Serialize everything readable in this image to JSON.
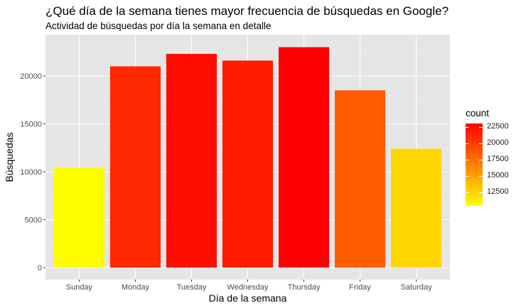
{
  "chart_data": {
    "type": "bar",
    "title": "¿Qué día de la semana tienes mayor frecuencia de búsquedas en Google?",
    "subtitle": "Actividad de búsquedas por día la semana en detalle",
    "xlabel": "Día de la semana",
    "ylabel": "Búsquedas",
    "categories": [
      "Sunday",
      "Monday",
      "Tuesday",
      "Wednesday",
      "Thursday",
      "Friday",
      "Saturday"
    ],
    "values": [
      10400,
      21000,
      22300,
      21600,
      23000,
      18500,
      12400
    ],
    "ylim": [
      0,
      24000
    ],
    "yticks": [
      0,
      5000,
      10000,
      15000,
      20000
    ],
    "ytick_labels": [
      "0",
      "5000",
      "10000",
      "15000",
      "20000"
    ],
    "grid": true,
    "panel_background": "#e5e5e5",
    "color_scale": {
      "low": "#ffff00",
      "high": "#ff0000",
      "min": 10400,
      "max": 23000
    },
    "legend": {
      "title": "count",
      "placement": "right",
      "breaks": [
        12500,
        15000,
        17500,
        20000,
        22500
      ],
      "labels": [
        "12500",
        "15000",
        "17500",
        "20000",
        "22500"
      ]
    }
  }
}
